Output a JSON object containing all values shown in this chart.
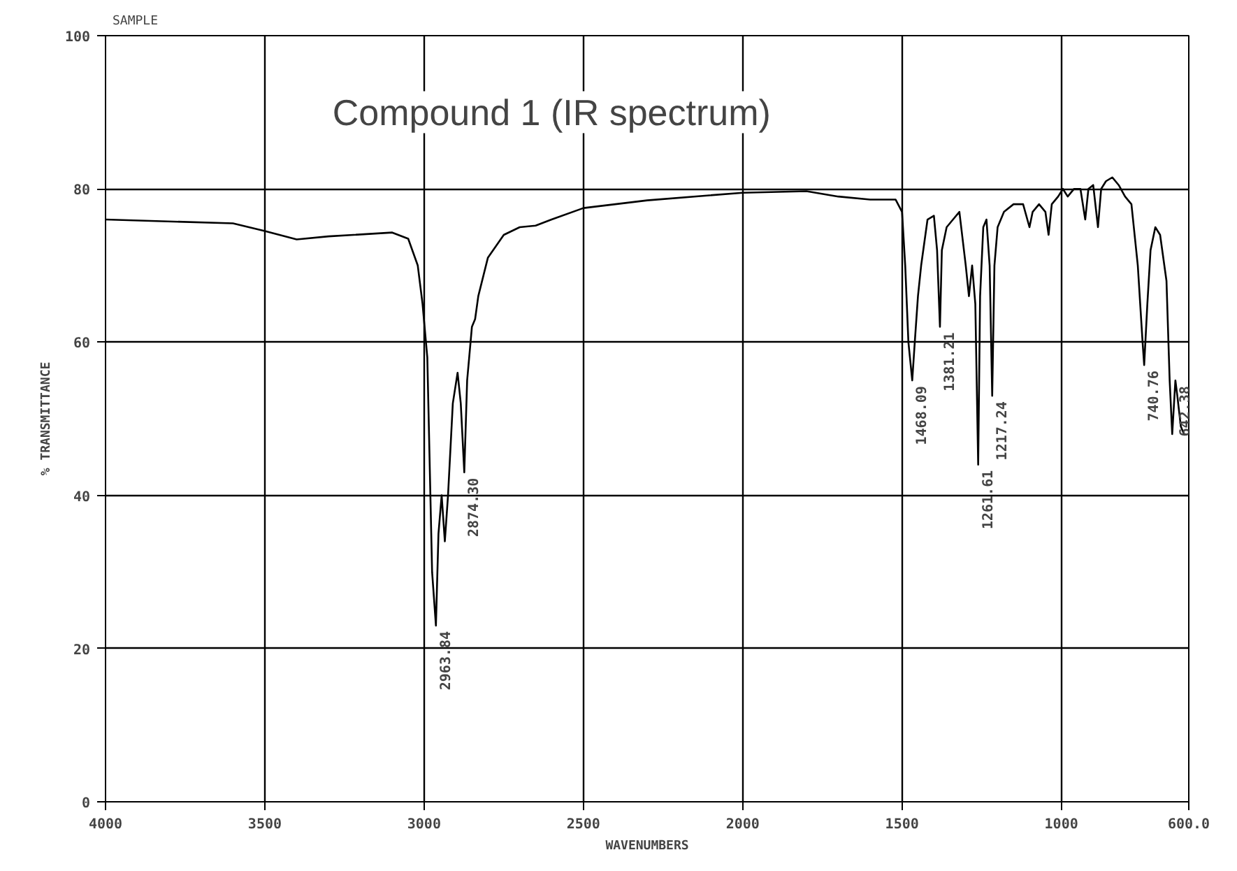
{
  "chart_data": {
    "type": "line",
    "title": "Compound 1 (IR spectrum)",
    "xlabel": "WAVENUMBERS",
    "ylabel": "% TRANSMITTANCE",
    "xlim": [
      4000,
      600
    ],
    "ylim": [
      0,
      100
    ],
    "xticks": [
      4000,
      3500,
      3000,
      2500,
      2000,
      1500,
      1000,
      {
        "value": 600,
        "label": "600.0"
      }
    ],
    "yticks": [
      0,
      20,
      40,
      60,
      80,
      100
    ],
    "grid": true,
    "marker": "none",
    "line_style": "solid",
    "series": [
      {
        "color": "#000000",
        "x": [
          4000,
          3600,
          3500,
          3400,
          3300,
          3100,
          3050,
          3020,
          3005,
          2990,
          2975,
          2963,
          2955,
          2945,
          2935,
          2925,
          2910,
          2895,
          2885,
          2874,
          2865,
          2850,
          2840,
          2830,
          2800,
          2750,
          2700,
          2650,
          2600,
          2500,
          2300,
          2000,
          1800,
          1700,
          1600,
          1520,
          1500,
          1490,
          1480,
          1468,
          1460,
          1450,
          1440,
          1420,
          1400,
          1390,
          1381,
          1375,
          1360,
          1340,
          1320,
          1300,
          1290,
          1280,
          1270,
          1261,
          1255,
          1245,
          1235,
          1225,
          1217,
          1210,
          1200,
          1180,
          1150,
          1120,
          1100,
          1090,
          1070,
          1050,
          1040,
          1030,
          1010,
          995,
          980,
          960,
          940,
          925,
          915,
          900,
          885,
          875,
          860,
          840,
          820,
          800,
          780,
          760,
          745,
          740,
          730,
          720,
          705,
          690,
          670,
          660,
          652,
          642,
          636,
          625,
          615
        ],
        "values": [
          76,
          75.5,
          74.5,
          73.4,
          73.8,
          74.3,
          73.5,
          70,
          65,
          58,
          30,
          23,
          35,
          40,
          34,
          40,
          52,
          56,
          52,
          43,
          55,
          62,
          63,
          66,
          71,
          74,
          75,
          75.2,
          76,
          77.5,
          78.5,
          79.5,
          79.7,
          79,
          78.6,
          78.6,
          77,
          70,
          60,
          55,
          60,
          66,
          70,
          76,
          76.5,
          72,
          62,
          72,
          75,
          76,
          77,
          70,
          66,
          70,
          65,
          44,
          66,
          75,
          76,
          70,
          53,
          70,
          75,
          77,
          78,
          78,
          75,
          77,
          78,
          77,
          74,
          78,
          79,
          80,
          79,
          80,
          80,
          76,
          80,
          80.5,
          75,
          80,
          81,
          81.5,
          80.5,
          79,
          78,
          70,
          60,
          57,
          65,
          72,
          75,
          74,
          68,
          55,
          48,
          55,
          53,
          49,
          48
        ]
      }
    ],
    "annotations": [
      "SAMPLE",
      {
        "text": "2963.84",
        "x": 2963,
        "y": 23
      },
      {
        "text": "2874.30",
        "x": 2874,
        "y": 43
      },
      {
        "text": "1468.09",
        "x": 1468,
        "y": 55
      },
      {
        "text": "1381.21",
        "x": 1381,
        "y": 62
      },
      {
        "text": "1261.61",
        "x": 1261,
        "y": 44
      },
      {
        "text": "1217.24",
        "x": 1217,
        "y": 53
      },
      {
        "text": "740.76",
        "x": 740,
        "y": 57
      },
      {
        "text": "642.38",
        "x": 642,
        "y": 55
      }
    ]
  }
}
